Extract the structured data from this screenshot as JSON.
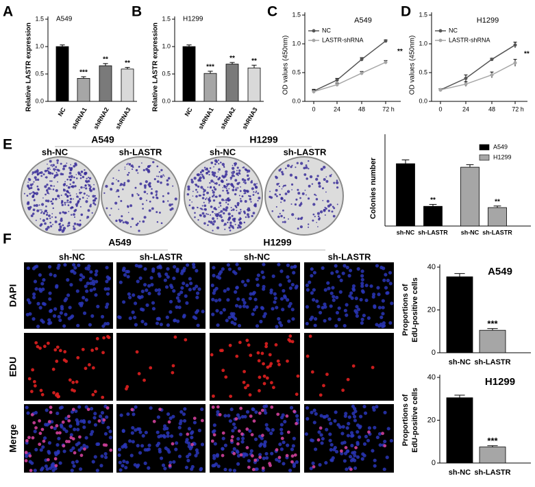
{
  "labels": {
    "panels": [
      "A",
      "B",
      "C",
      "D",
      "E",
      "F"
    ],
    "E": {
      "groups": [
        "A549",
        "H1299"
      ],
      "columns": [
        "sh-NC",
        "sh-LASTR",
        "sh-NC",
        "sh-LASTR"
      ]
    },
    "F": {
      "groups": [
        "A549",
        "H1299"
      ],
      "columns": [
        "sh-NC",
        "sh-LASTR",
        "sh-NC",
        "sh-LASTR"
      ],
      "rows": [
        "DAPI",
        "EDU",
        "Merge"
      ]
    }
  },
  "chart_data": [
    {
      "type": "bar",
      "title": "A549",
      "ylabel": "Relative LASTR expression",
      "categories": [
        "NC",
        "shRNA1",
        "shRNA2",
        "shRNA3"
      ],
      "values": [
        1.0,
        0.42,
        0.65,
        0.59
      ],
      "errors": [
        0.03,
        0.03,
        0.04,
        0.03
      ],
      "value_annotations": [
        null,
        "***",
        "**",
        "**"
      ],
      "colors": [
        "#000000",
        "#a6a6a6",
        "#7a7a7a",
        "#d9d9d9"
      ],
      "ylim": [
        0,
        1.5
      ],
      "yticks": [
        {
          "value": 0,
          "label": "0.0"
        },
        {
          "value": 0.5,
          "label": "0.5"
        },
        {
          "value": 1,
          "label": "1.0"
        },
        {
          "value": 1.5,
          "label": "1.5"
        }
      ]
    },
    {
      "type": "bar",
      "title": "H1299",
      "ylabel": "Relative LASTR expression",
      "categories": [
        "NC",
        "shRNA1",
        "shRNA2",
        "shRNA3"
      ],
      "values": [
        1.0,
        0.51,
        0.68,
        0.61
      ],
      "errors": [
        0.03,
        0.04,
        0.03,
        0.05
      ],
      "value_annotations": [
        null,
        "***",
        "**",
        "**"
      ],
      "colors": [
        "#000000",
        "#a6a6a6",
        "#7a7a7a",
        "#d9d9d9"
      ],
      "ylim": [
        0,
        1.5
      ],
      "yticks": [
        {
          "value": 0,
          "label": "0.0"
        },
        {
          "value": 0.5,
          "label": "0.5"
        },
        {
          "value": 1,
          "label": "1.0"
        },
        {
          "value": 1.5,
          "label": "1.5"
        }
      ]
    },
    {
      "type": "line",
      "title": "A549",
      "ylabel": "OD values (450nm)",
      "categories": [
        "0",
        "24",
        "48",
        "72 h"
      ],
      "series": [
        {
          "name": "NC",
          "color": "#555555",
          "values": [
            0.18,
            0.37,
            0.73,
            1.05
          ],
          "errors": [
            0.03,
            0.03,
            0.03,
            0.02
          ]
        },
        {
          "name": "LASTR-shRNA",
          "color": "#a6a6a6",
          "values": [
            0.17,
            0.29,
            0.49,
            0.68
          ],
          "errors": [
            0.03,
            0.03,
            0.03,
            0.03
          ]
        }
      ],
      "annotation": "**",
      "ylim": [
        0,
        1.5
      ],
      "yticks": [
        {
          "value": 0,
          "label": "0.0"
        },
        {
          "value": 0.5,
          "label": "0.5"
        },
        {
          "value": 1,
          "label": "1.0"
        },
        {
          "value": 1.5,
          "label": "1.5"
        }
      ]
    },
    {
      "type": "line",
      "title": "H1299",
      "ylabel": "OD values (450nm)",
      "categories": [
        "0",
        "24",
        "48",
        "72 h"
      ],
      "series": [
        {
          "name": "NC",
          "color": "#555555",
          "values": [
            0.2,
            0.4,
            0.73,
            0.98
          ],
          "errors": [
            0.02,
            0.06,
            0.02,
            0.05
          ]
        },
        {
          "name": "LASTR-shRNA",
          "color": "#a6a6a6",
          "values": [
            0.2,
            0.3,
            0.46,
            0.67
          ],
          "errors": [
            0.02,
            0.04,
            0.05,
            0.06
          ]
        }
      ],
      "annotation": "**",
      "ylim": [
        0,
        1.5
      ],
      "yticks": [
        {
          "value": 0,
          "label": "0.0"
        },
        {
          "value": 0.5,
          "label": "0.5"
        },
        {
          "value": 1,
          "label": "1.0"
        },
        {
          "value": 1.5,
          "label": "1.5"
        }
      ]
    },
    {
      "type": "bar",
      "ylabel": "Colonies number",
      "series": [
        {
          "name": "A549",
          "color": "#000000",
          "categories": [
            "sh-NC",
            "sh-LASTR"
          ],
          "values": [
            196,
            62
          ],
          "errors": [
            12,
            6
          ],
          "value_annotations": [
            null,
            "**"
          ]
        },
        {
          "name": "H1299",
          "color": "#a6a6a6",
          "categories": [
            "sh-NC",
            "sh-LASTR"
          ],
          "values": [
            185,
            58
          ],
          "errors": [
            8,
            5
          ],
          "value_annotations": [
            null,
            "**"
          ]
        }
      ],
      "ylim": [
        0,
        280
      ],
      "yticks": []
    },
    {
      "type": "bar",
      "title": "A549",
      "ylabel": [
        "Proportions of",
        "EdU-positive cells"
      ],
      "categories": [
        "sh-NC",
        "sh-LASTR"
      ],
      "values": [
        35.5,
        10.5
      ],
      "errors": [
        1.5,
        0.8
      ],
      "value_annotations": [
        null,
        "***"
      ],
      "colors": [
        "#000000",
        "#a6a6a6"
      ],
      "ylim": [
        0,
        40
      ],
      "yticks": [
        0,
        20,
        40
      ]
    },
    {
      "type": "bar",
      "title": "H1299",
      "ylabel": [
        "Proportions of",
        "EdU-positive cells"
      ],
      "categories": [
        "sh-NC",
        "sh-LASTR"
      ],
      "values": [
        30.5,
        7.5
      ],
      "errors": [
        1.2,
        0.6
      ],
      "value_annotations": [
        null,
        "***"
      ],
      "colors": [
        "#000000",
        "#a6a6a6"
      ],
      "ylim": [
        0,
        40
      ],
      "yticks": [
        0,
        20,
        40
      ]
    }
  ]
}
